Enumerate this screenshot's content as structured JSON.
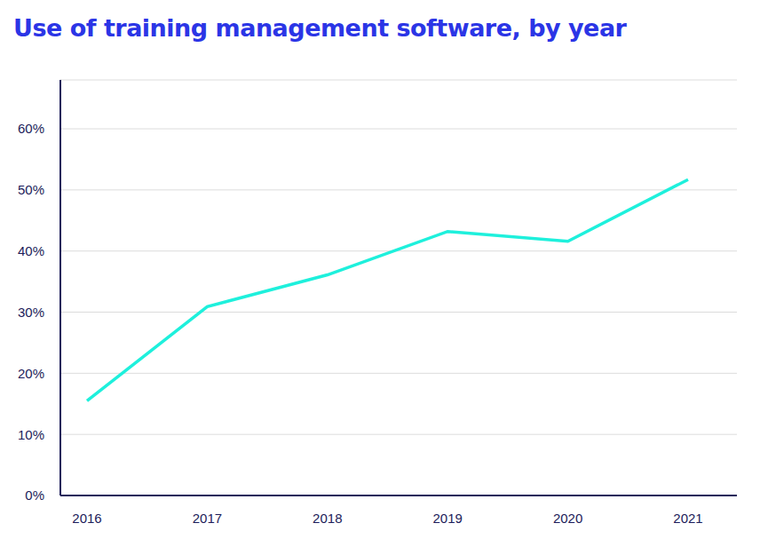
{
  "chart_data": {
    "type": "line",
    "title": "Use of training management software, by year",
    "categories": [
      "2016",
      "2017",
      "2018",
      "2019",
      "2020",
      "2021"
    ],
    "values": [
      15.5,
      30.9,
      36.1,
      43.2,
      41.6,
      51.7
    ],
    "color": "#1ef0dc",
    "ylim": [
      0,
      68
    ],
    "yticks": [
      {
        "value": 0,
        "label": "0%"
      },
      {
        "value": 10,
        "label": "10%"
      },
      {
        "value": 20,
        "label": "20%"
      },
      {
        "value": 30,
        "label": "30%"
      },
      {
        "value": 40,
        "label": "40%"
      },
      {
        "value": 50,
        "label": "50%"
      },
      {
        "value": 60,
        "label": "60%"
      }
    ],
    "grid": true
  }
}
